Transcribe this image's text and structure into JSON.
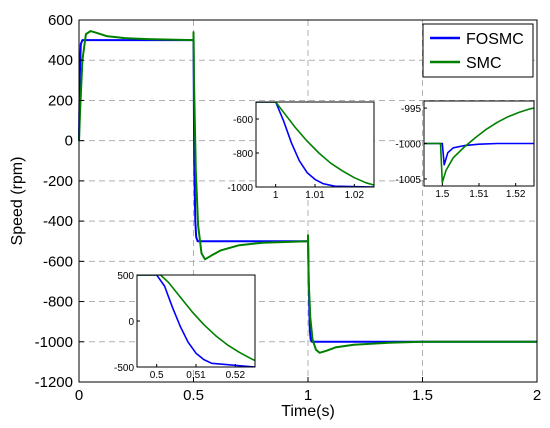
{
  "chart_data": {
    "type": "line",
    "xlabel": "Time(s)",
    "ylabel": "Speed (rpm)",
    "xlim": [
      0,
      2
    ],
    "ylim": [
      -1200,
      600
    ],
    "xticks": [
      "0",
      "0.5",
      "1",
      "1.5",
      "2"
    ],
    "yticks": [
      "600",
      "400",
      "200",
      "0",
      "-200",
      "-400",
      "-600",
      "-800",
      "-1000",
      "-1200"
    ],
    "grid": true,
    "legend_position": "top-right",
    "series": [
      {
        "name": "FOSMC",
        "color": "#0000ff",
        "x": [
          0,
          0.003,
          0.008,
          0.015,
          0.5,
          0.5,
          0.503,
          0.508,
          0.512,
          0.518,
          0.53,
          1.0,
          1.0,
          1.003,
          1.008,
          1.012,
          1.018,
          1.03,
          2.0
        ],
        "y": [
          0,
          300,
          480,
          500,
          500,
          520,
          -100,
          -400,
          -480,
          -500,
          -500,
          -500,
          -480,
          -700,
          -940,
          -990,
          -1000,
          -1000,
          -1000
        ]
      },
      {
        "name": "SMC",
        "color": "#008000",
        "x": [
          0,
          0.005,
          0.015,
          0.03,
          0.05,
          0.08,
          0.12,
          0.2,
          0.3,
          0.5,
          0.5,
          0.502,
          0.51,
          0.52,
          0.535,
          0.55,
          0.58,
          0.62,
          0.7,
          0.8,
          1.0,
          1.0,
          1.003,
          1.01,
          1.02,
          1.035,
          1.05,
          1.08,
          1.12,
          1.2,
          1.35,
          1.5,
          1.7,
          2.0
        ],
        "y": [
          0,
          150,
          400,
          530,
          545,
          535,
          520,
          510,
          505,
          500,
          540,
          300,
          -150,
          -420,
          -560,
          -590,
          -570,
          -545,
          -520,
          -508,
          -500,
          -470,
          -700,
          -880,
          -990,
          -1040,
          -1055,
          -1045,
          -1028,
          -1015,
          -1005,
          -1000,
          -1000,
          -1000
        ]
      }
    ],
    "insets": [
      {
        "xlim": [
          0.495,
          0.525
        ],
        "ylim": [
          -500,
          500
        ],
        "xticks": [
          "0.5",
          "0.51",
          "0.52"
        ],
        "yticks": [
          "500",
          "0",
          "-500"
        ],
        "series": [
          {
            "name": "FOSMC",
            "x": [
              0.495,
              0.5,
              0.502,
              0.504,
              0.506,
              0.508,
              0.51,
              0.512,
              0.514,
              0.525
            ],
            "y": [
              500,
              500,
              380,
              150,
              -60,
              -230,
              -350,
              -420,
              -460,
              -500
            ]
          },
          {
            "name": "SMC",
            "x": [
              0.495,
              0.501,
              0.503,
              0.506,
              0.509,
              0.512,
              0.515,
              0.518,
              0.521,
              0.524,
              0.5265
            ],
            "y": [
              500,
              500,
              420,
              260,
              100,
              -40,
              -160,
              -260,
              -340,
              -410,
              -460
            ]
          }
        ]
      },
      {
        "xlim": [
          0.995,
          1.025
        ],
        "ylim": [
          -1000,
          -500
        ],
        "xticks": [
          "1",
          "1.01",
          "1.02"
        ],
        "yticks": [
          "-600",
          "-800",
          "-1000"
        ],
        "series": [
          {
            "name": "FOSMC",
            "x": [
              0.995,
              1.0,
              1.002,
              1.004,
              1.006,
              1.008,
              1.01,
              1.012,
              1.015,
              1.025
            ],
            "y": [
              -500,
              -500,
              -610,
              -740,
              -845,
              -915,
              -955,
              -980,
              -995,
              -1000
            ]
          },
          {
            "name": "SMC",
            "x": [
              0.995,
              1.0,
              1.002,
              1.005,
              1.008,
              1.011,
              1.014,
              1.017,
              1.02,
              1.023,
              1.0265
            ],
            "y": [
              -500,
              -500,
              -560,
              -650,
              -730,
              -800,
              -860,
              -905,
              -945,
              -975,
              -998
            ]
          }
        ]
      },
      {
        "xlim": [
          1.495,
          1.525
        ],
        "ylim": [
          -1006,
          -994
        ],
        "xticks": [
          "1.5",
          "1.51",
          "1.52"
        ],
        "yticks": [
          "-995",
          "-1000",
          "-1005"
        ],
        "series": [
          {
            "name": "FOSMC",
            "x": [
              1.495,
              1.5,
              1.5005,
              1.5015,
              1.503,
              1.506,
              1.51,
              1.515,
              1.52,
              1.527
            ],
            "y": [
              -1000,
              -1000,
              -1003,
              -1001.3,
              -1000.6,
              -1000.3,
              -1000.1,
              -1000,
              -1000,
              -1000
            ]
          },
          {
            "name": "SMC",
            "x": [
              1.495,
              1.4995,
              1.5,
              1.501,
              1.503,
              1.506,
              1.509,
              1.512,
              1.515,
              1.518,
              1.521,
              1.524,
              1.527
            ],
            "y": [
              -1000,
              -1000,
              -1005.5,
              -1003.8,
              -1002,
              -1000.5,
              -999.2,
              -998.0,
              -997.0,
              -996.2,
              -995.6,
              -995.1,
              -994.8
            ]
          }
        ]
      }
    ]
  }
}
